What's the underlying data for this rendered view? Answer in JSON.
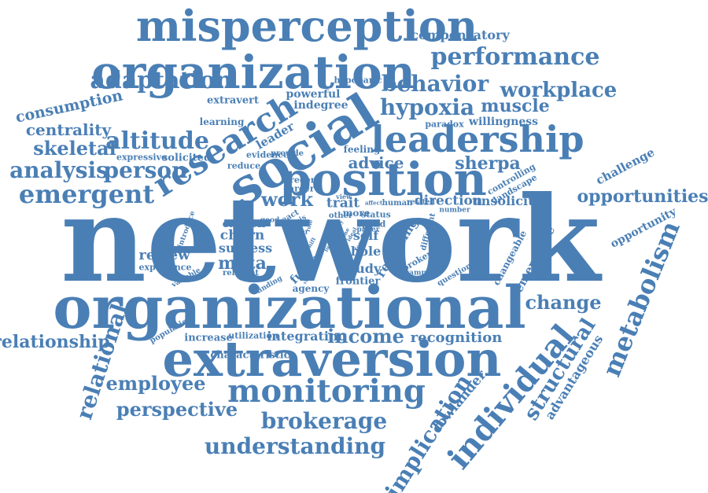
{
  "color": "#4a7fb5",
  "words": [
    {
      "key": "network",
      "text": "network"
    },
    {
      "key": "organizational",
      "text": "organizational"
    },
    {
      "key": "extraversion",
      "text": "extraversion"
    },
    {
      "key": "organization",
      "text": "organization"
    },
    {
      "key": "misperception",
      "text": "misperception"
    },
    {
      "key": "social",
      "text": "social"
    },
    {
      "key": "position",
      "text": "position"
    },
    {
      "key": "leadership",
      "text": "leadership"
    },
    {
      "key": "research",
      "text": "research"
    },
    {
      "key": "monitoring",
      "text": "monitoring"
    },
    {
      "key": "individual",
      "text": "individual"
    },
    {
      "key": "performance",
      "text": "performance"
    },
    {
      "key": "adaptation",
      "text": "adaptation"
    },
    {
      "key": "behavior",
      "text": "behavior"
    },
    {
      "key": "workplace",
      "text": "workplace"
    },
    {
      "key": "hypoxia",
      "text": "hypoxia"
    },
    {
      "key": "muscle",
      "text": "muscle"
    },
    {
      "key": "altitude",
      "text": "altitude"
    },
    {
      "key": "analysis",
      "text": "analysis"
    },
    {
      "key": "person",
      "text": "person"
    },
    {
      "key": "emergent",
      "text": "emergent"
    },
    {
      "key": "skeletal",
      "text": "skeletal"
    },
    {
      "key": "centrality",
      "text": "centrality"
    },
    {
      "key": "consumption",
      "text": "consumption"
    },
    {
      "key": "compensatory",
      "text": "compensatory"
    },
    {
      "key": "opportunities",
      "text": "opportunities"
    },
    {
      "key": "challenge",
      "text": "challenge"
    },
    {
      "key": "opportunity",
      "text": "opportunity"
    },
    {
      "key": "metabolism",
      "text": "metabolism"
    },
    {
      "key": "change",
      "text": "change"
    },
    {
      "key": "structural",
      "text": "structural"
    },
    {
      "key": "advantageous",
      "text": "advantageous"
    },
    {
      "key": "relationship",
      "text": "relationship"
    },
    {
      "key": "relational",
      "text": "relational"
    },
    {
      "key": "employee",
      "text": "employee"
    },
    {
      "key": "perspective",
      "text": "perspective"
    },
    {
      "key": "brokerage",
      "text": "brokerage"
    },
    {
      "key": "understanding",
      "text": "understanding"
    },
    {
      "key": "implication",
      "text": "implication"
    },
    {
      "key": "lowlander",
      "text": "lowlander"
    },
    {
      "key": "income",
      "text": "income"
    },
    {
      "key": "recognition",
      "text": "recognition"
    },
    {
      "key": "integrating",
      "text": "integrating"
    },
    {
      "key": "utilization",
      "text": "utilization"
    },
    {
      "key": "increase",
      "text": "increase"
    },
    {
      "key": "population",
      "text": "population"
    },
    {
      "key": "characteristic",
      "text": "characteristic"
    },
    {
      "key": "sherpa",
      "text": "sherpa"
    },
    {
      "key": "advice",
      "text": "advice"
    },
    {
      "key": "work",
      "text": "work"
    },
    {
      "key": "trait",
      "text": "trait"
    },
    {
      "key": "direction",
      "text": "direction"
    },
    {
      "key": "unsolicited",
      "text": "unsolicited"
    },
    {
      "key": "review",
      "text": "review"
    },
    {
      "key": "meta",
      "text": "meta"
    },
    {
      "key": "success",
      "text": "success"
    },
    {
      "key": "churn",
      "text": "churn"
    },
    {
      "key": "oxygen",
      "text": "oxygen"
    },
    {
      "key": "future",
      "text": "future"
    },
    {
      "key": "study",
      "text": "study"
    },
    {
      "key": "frontier",
      "text": "frontier"
    },
    {
      "key": "hole",
      "text": "hole"
    },
    {
      "key": "self",
      "text": "self"
    },
    {
      "key": "revisiting",
      "text": "revisiting"
    },
    {
      "key": "emergence",
      "text": "emergence"
    },
    {
      "key": "changeable",
      "text": "changeable"
    },
    {
      "key": "willingness",
      "text": "willingness"
    },
    {
      "key": "paradox",
      "text": "paradox"
    },
    {
      "key": "indegree",
      "text": "indegree"
    },
    {
      "key": "powerful",
      "text": "powerful"
    },
    {
      "key": "extravert",
      "text": "extravert"
    },
    {
      "key": "learning",
      "text": "learning"
    },
    {
      "key": "hypobaric",
      "text": "hypobaric"
    },
    {
      "key": "leader",
      "text": "leader"
    },
    {
      "key": "solicited",
      "text": "solicited"
    },
    {
      "key": "expressive",
      "text": "expressive"
    },
    {
      "key": "evidence",
      "text": "evidence"
    },
    {
      "key": "provide",
      "text": "provide"
    },
    {
      "key": "reduce",
      "text": "reduce"
    },
    {
      "key": "feeling",
      "text": "feeling"
    },
    {
      "key": "recent",
      "text": "recent"
    },
    {
      "key": "career",
      "text": "career"
    },
    {
      "key": "controlling",
      "text": "controlling"
    },
    {
      "key": "landscape",
      "text": "landscape"
    },
    {
      "key": "agency",
      "text": "agency"
    },
    {
      "key": "experience",
      "text": "experience"
    },
    {
      "key": "relevant",
      "text": "relevant"
    },
    {
      "key": "variable",
      "text": "variable"
    },
    {
      "key": "finding",
      "text": "finding"
    },
    {
      "key": "broker",
      "text": "broker"
    },
    {
      "key": "sample",
      "text": "sample"
    },
    {
      "key": "question",
      "text": "question"
    },
    {
      "key": "number",
      "text": "number"
    },
    {
      "key": "human",
      "text": "human"
    },
    {
      "key": "more",
      "text": "more"
    },
    {
      "key": "related",
      "text": "related"
    },
    {
      "key": "status",
      "text": "status"
    },
    {
      "key": "spend",
      "text": "spend"
    },
    {
      "key": "paper",
      "text": "paper"
    },
    {
      "key": "other",
      "text": "other"
    },
    {
      "key": "different",
      "text": "different"
    },
    {
      "key": "good",
      "text": "good"
    },
    {
      "key": "introduce",
      "text": "introduce"
    },
    {
      "key": "react",
      "text": "react"
    },
    {
      "key": "basis",
      "text": "basis"
    },
    {
      "key": "larger",
      "text": "larger"
    },
    {
      "key": "affect",
      "text": "affect"
    },
    {
      "key": "role",
      "text": "role"
    },
    {
      "key": "body",
      "text": "body"
    },
    {
      "key": "view",
      "text": "view"
    },
    {
      "key": "time",
      "text": "time"
    },
    {
      "key": "ideal",
      "text": "ideal"
    },
    {
      "key": "affect2",
      "text": "affect"
    },
    {
      "key": "shift",
      "text": "shift"
    },
    {
      "key": "lung",
      "text": "lung"
    },
    {
      "key": "visible",
      "text": "visible"
    },
    {
      "key": "form",
      "text": "form"
    }
  ]
}
